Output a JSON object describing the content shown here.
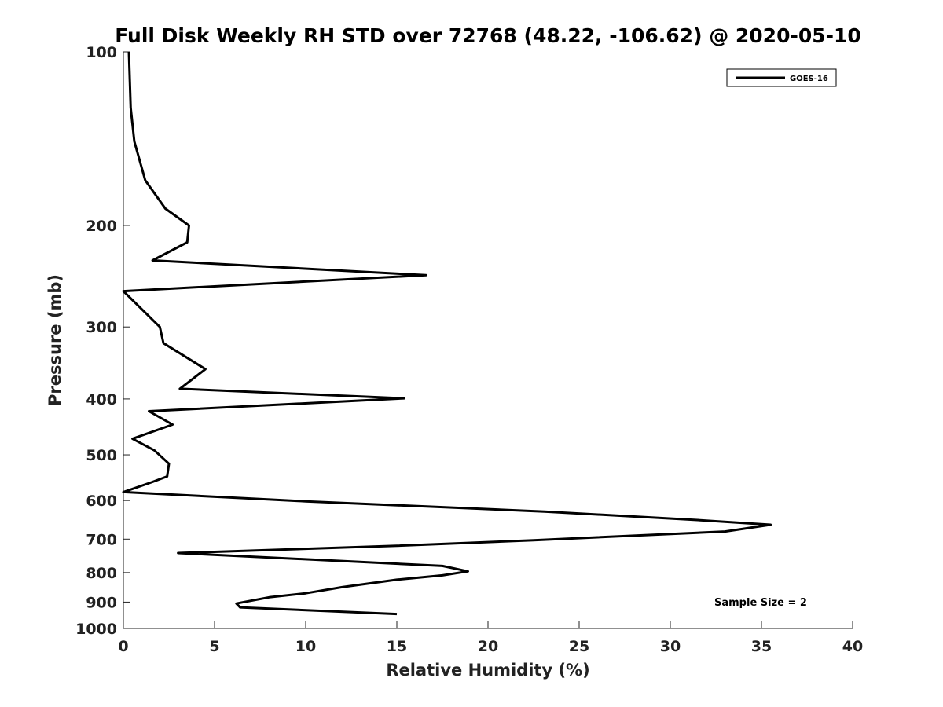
{
  "chart_data": {
    "type": "line",
    "title": "Full Disk Weekly RH STD over 72768 (48.22, -106.62) @ 2020-05-10",
    "xlabel": "Relative Humidity (%)",
    "ylabel": "Pressure (mb)",
    "xlim": [
      0,
      40
    ],
    "ylim": [
      100,
      1000
    ],
    "yscale": "log",
    "y_reversed": true,
    "grid": false,
    "legend_position": "top-right",
    "x_ticks": [
      0,
      5,
      10,
      15,
      20,
      25,
      30,
      35,
      40
    ],
    "y_ticks": [
      100,
      200,
      300,
      400,
      500,
      600,
      700,
      800,
      900,
      1000
    ],
    "annotation": "Sample Size = 2",
    "series": [
      {
        "name": "GOES-16",
        "color": "#000000",
        "points": [
          [
            0.3,
            100
          ],
          [
            0.4,
            125
          ],
          [
            0.6,
            143
          ],
          [
            1.2,
            167
          ],
          [
            2.3,
            187
          ],
          [
            3.6,
            200
          ],
          [
            3.5,
            214
          ],
          [
            1.6,
            230
          ],
          [
            16.6,
            244
          ],
          [
            0.0,
            260
          ],
          [
            2.0,
            300
          ],
          [
            2.2,
            320
          ],
          [
            4.5,
            355
          ],
          [
            3.1,
            384
          ],
          [
            15.4,
            399
          ],
          [
            1.4,
            420
          ],
          [
            2.7,
            443
          ],
          [
            0.5,
            469
          ],
          [
            1.7,
            491
          ],
          [
            2.5,
            518
          ],
          [
            2.4,
            545
          ],
          [
            1.6,
            557
          ],
          [
            0.0,
            580
          ],
          [
            10.0,
            602
          ],
          [
            23.1,
            627
          ],
          [
            31.3,
            648
          ],
          [
            35.5,
            661
          ],
          [
            33.0,
            679
          ],
          [
            22.5,
            703
          ],
          [
            15.0,
            719
          ],
          [
            3.0,
            740
          ],
          [
            17.5,
            779
          ],
          [
            18.9,
            796
          ],
          [
            17.5,
            809
          ],
          [
            15.0,
            823
          ],
          [
            12.0,
            848
          ],
          [
            10.0,
            869
          ],
          [
            8.0,
            883
          ],
          [
            6.2,
            905
          ],
          [
            6.4,
            919
          ],
          [
            15.0,
            944
          ]
        ]
      }
    ]
  }
}
